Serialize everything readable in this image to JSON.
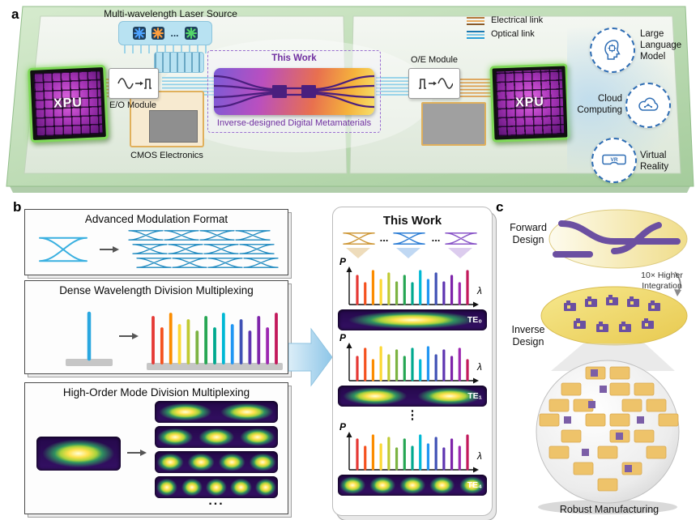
{
  "panel_a": {
    "letter": "a",
    "laser_label": "Multi-wavelength Laser Source",
    "laser_dots": "...",
    "eo_label": "E/O Module",
    "oe_label": "O/E Module",
    "cmos_label": "CMOS Electronics",
    "device_title": "This Work",
    "device_caption": "Inverse-designed Digital Metamaterials",
    "xpu_left": "XPU",
    "xpu_right": "XPU",
    "legend": {
      "electrical": "Electrical link",
      "optical": "Optical link"
    },
    "apps": {
      "llm": "Large Language Model",
      "cloud": "Cloud Computing",
      "vr": "Virtual Reality",
      "vr_glyph": "VR"
    }
  },
  "panel_b": {
    "letter": "b",
    "box1_title": "Advanced Modulation Format",
    "box2_title": "Dense Wavelength Division Multiplexing",
    "box3_title": "High-Order Mode Division Multiplexing",
    "dots": "...",
    "mode_left_lobes": 1,
    "mode_rows": [
      2,
      3,
      4,
      5
    ]
  },
  "this_work": {
    "title": "This Work",
    "dots1": "...",
    "dots2": "...",
    "vdots": "⋮",
    "spectra": [
      {
        "p": "P",
        "lambda": "λ",
        "mode": "TE₀",
        "lobes": 1
      },
      {
        "p": "P",
        "lambda": "λ",
        "mode": "TE₁",
        "lobes": 2
      },
      {
        "p": "P",
        "lambda": "λ",
        "mode": "TE₄",
        "lobes": 5
      }
    ]
  },
  "panel_c": {
    "letter": "c",
    "forward_label": "Forward Design",
    "integration_label": "10× Higher Integration",
    "inverse_label": "Inverse Design",
    "manufacturing_label": "Robust Manufacturing"
  },
  "colors": {
    "wdm": [
      "#e53935",
      "#f4511e",
      "#fb8c00",
      "#fdd835",
      "#c0ca33",
      "#7cb342",
      "#26a653",
      "#00a98f",
      "#00b8d4",
      "#2196f3",
      "#3f51b5",
      "#5e35b1",
      "#7e24aa",
      "#9c27b0",
      "#c2185b"
    ],
    "accent_purple": "#7030a0",
    "optical_blue": "#8ecfe8",
    "electrical_orange": "#dd9e4e",
    "board_green": "#b9d7ae"
  }
}
